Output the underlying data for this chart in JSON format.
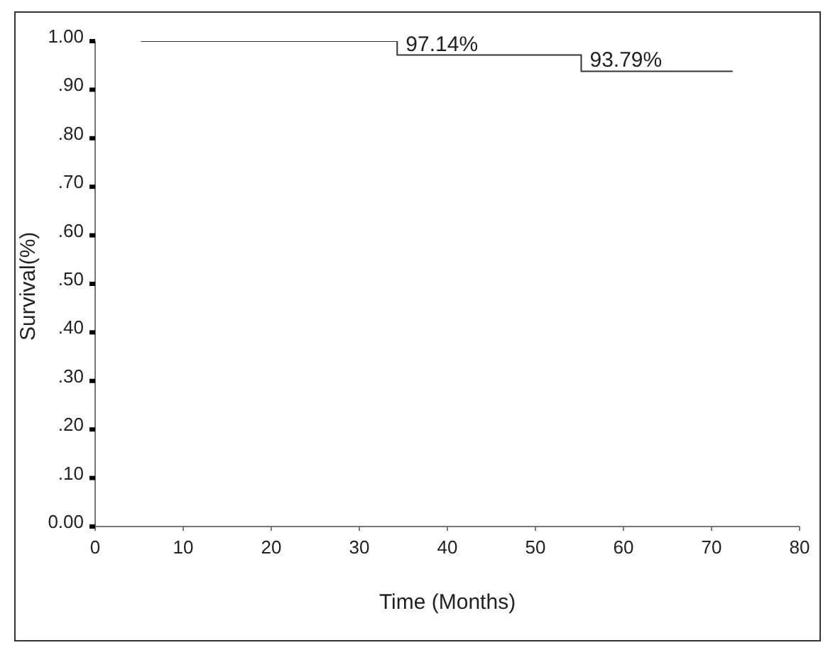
{
  "chart_data": {
    "type": "step",
    "xlabel": "Time (Months)",
    "ylabel": "Survival(%)",
    "x": [
      5.2,
      34.3,
      55.2,
      72.4
    ],
    "series": [
      {
        "color": "#333333",
        "values": [
          1.0,
          0.9714,
          0.9379,
          0.9379
        ]
      }
    ],
    "xlim": [
      0,
      80
    ],
    "xticks": [
      0,
      10,
      20,
      30,
      40,
      50,
      60,
      70,
      80
    ],
    "ylim": [
      0,
      1
    ],
    "yticks": [
      {
        "value": 0,
        "label": "0.00"
      },
      {
        "value": 0.1,
        "label": ".10"
      },
      {
        "value": 0.2,
        "label": ".20"
      },
      {
        "value": 0.3,
        "label": ".30"
      },
      {
        "value": 0.4,
        "label": ".40"
      },
      {
        "value": 0.5,
        "label": ".50"
      },
      {
        "value": 0.6,
        "label": ".60"
      },
      {
        "value": 0.7,
        "label": ".70"
      },
      {
        "value": 0.8,
        "label": ".80"
      },
      {
        "value": 0.9,
        "label": ".90"
      },
      {
        "value": 1,
        "label": "1.00"
      }
    ],
    "annotations": [
      {
        "text": "97.14%",
        "x": 34.3,
        "y": 0.9714
      },
      {
        "text": "93.79%",
        "x": 55.2,
        "y": 0.9379
      }
    ],
    "grid": false,
    "legend": false,
    "marker": "none",
    "line_style": "solid"
  }
}
